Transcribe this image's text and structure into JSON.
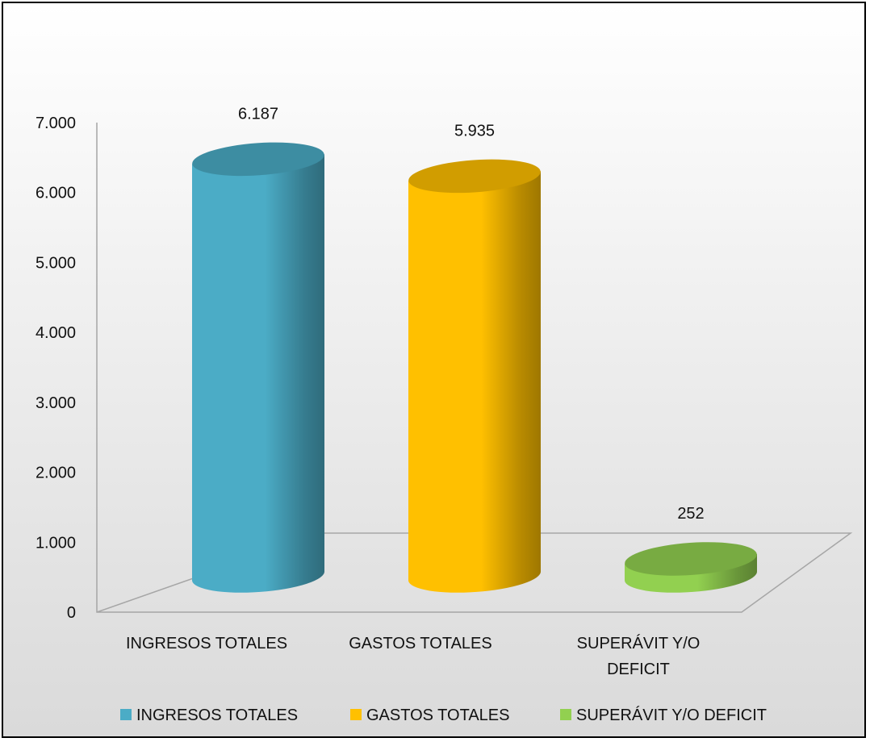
{
  "chart_data": {
    "type": "bar",
    "style": "3d-cylinder",
    "categories": [
      "INGRESOS TOTALES",
      "GASTOS TOTALES",
      "SUPERÁVIT Y/O DEFICIT"
    ],
    "category_lines": [
      [
        "INGRESOS TOTALES"
      ],
      [
        "GASTOS TOTALES"
      ],
      [
        "SUPERÁVIT Y/O",
        "DEFICIT"
      ]
    ],
    "values": [
      6187,
      5935,
      252
    ],
    "data_labels": [
      "6.187",
      "5.935",
      "252"
    ],
    "ylim": [
      0,
      7000
    ],
    "yticks": [
      0,
      1000,
      2000,
      3000,
      4000,
      5000,
      6000,
      7000
    ],
    "ytick_labels": [
      "0",
      "1.000",
      "2.000",
      "3.000",
      "4.000",
      "5.000",
      "6.000",
      "7.000"
    ],
    "title": "",
    "xlabel": "",
    "ylabel": "",
    "grid": false,
    "legend": {
      "placement": "bottom",
      "entries": [
        "INGRESOS TOTALES",
        "GASTOS TOTALES",
        "SUPERÁVIT Y/O DEFICIT"
      ]
    },
    "colors": [
      "#4BACC6",
      "#FFC000",
      "#92D050"
    ]
  }
}
